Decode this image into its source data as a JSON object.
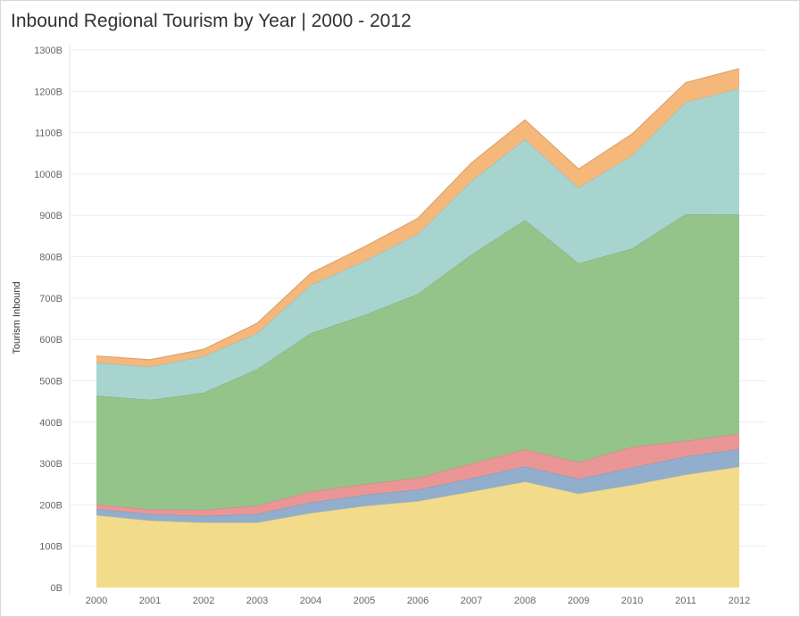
{
  "title": "Inbound Regional Tourism by Year | 2000 - 2012",
  "chart_data": {
    "type": "area",
    "stacked": true,
    "title": "Inbound Regional Tourism by Year | 2000 - 2012",
    "xlabel": "",
    "ylabel": "Tourism Inbound",
    "x": [
      "2000",
      "2001",
      "2002",
      "2003",
      "2004",
      "2005",
      "2006",
      "2007",
      "2008",
      "2009",
      "2010",
      "2011",
      "2012"
    ],
    "ylim": [
      0,
      1300
    ],
    "yticks": [
      "0B",
      "100B",
      "200B",
      "300B",
      "400B",
      "500B",
      "600B",
      "700B",
      "800B",
      "900B",
      "1000B",
      "1100B",
      "1200B",
      "1300B"
    ],
    "grid": true,
    "series": [
      {
        "color": "#f2dc8c",
        "values": [
          175,
          162,
          157,
          157,
          180,
          197,
          209,
          232,
          256,
          227,
          248,
          273,
          292
        ]
      },
      {
        "color": "#91aecd",
        "values": [
          15,
          16,
          16,
          21,
          26,
          27,
          28,
          32,
          37,
          36,
          42,
          44,
          43
        ]
      },
      {
        "color": "#eb9696",
        "values": [
          11,
          11,
          15,
          20,
          26,
          26,
          28,
          36,
          41,
          40,
          50,
          38,
          37
        ]
      },
      {
        "color": "#95c48a",
        "values": [
          263,
          265,
          283,
          330,
          383,
          409,
          445,
          505,
          555,
          481,
          480,
          548,
          530
        ]
      },
      {
        "color": "#a8d4d0",
        "values": [
          80,
          80,
          88,
          87,
          117,
          130,
          145,
          178,
          195,
          183,
          225,
          271,
          305
        ]
      },
      {
        "color": "#f5b77a",
        "values": [
          16,
          17,
          17,
          24,
          28,
          35,
          38,
          44,
          47,
          45,
          52,
          47,
          48
        ]
      }
    ]
  }
}
